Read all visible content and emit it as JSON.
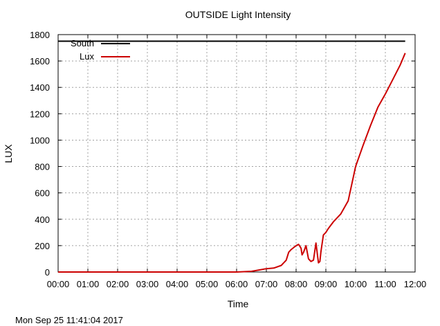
{
  "chart_data": {
    "type": "line",
    "title": "OUTSIDE Light Intensity",
    "xlabel": "Time",
    "ylabel": "LUX",
    "xlim": [
      "00:00",
      "12:00"
    ],
    "x_ticks": [
      "00:00",
      "01:00",
      "02:00",
      "03:00",
      "04:00",
      "05:00",
      "06:00",
      "07:00",
      "08:00",
      "09:00",
      "10:00",
      "11:00",
      "12:00"
    ],
    "ylim": [
      0,
      1800
    ],
    "y_ticks": [
      0,
      200,
      400,
      600,
      800,
      1000,
      1200,
      1400,
      1600,
      1800
    ],
    "grid": true,
    "legend_position": "top-left",
    "series": [
      {
        "name": "South",
        "color": "#000000",
        "x": [
          "00:00",
          "11:40"
        ],
        "values": [
          1750,
          1750
        ]
      },
      {
        "name": "Lux",
        "color": "#cc0000",
        "x": [
          "00:00",
          "06:00",
          "06:30",
          "06:45",
          "07:00",
          "07:15",
          "07:30",
          "07:40",
          "07:45",
          "07:50",
          "08:00",
          "08:05",
          "08:10",
          "08:12",
          "08:15",
          "08:20",
          "08:25",
          "08:30",
          "08:35",
          "08:40",
          "08:45",
          "08:48",
          "08:50",
          "08:55",
          "09:00",
          "09:05",
          "09:15",
          "09:30",
          "09:45",
          "10:00",
          "10:15",
          "10:30",
          "10:45",
          "11:00",
          "11:15",
          "11:30",
          "11:40"
        ],
        "values": [
          0,
          0,
          5,
          15,
          25,
          30,
          50,
          90,
          150,
          170,
          200,
          210,
          180,
          130,
          150,
          200,
          100,
          80,
          90,
          220,
          70,
          80,
          150,
          280,
          300,
          330,
          380,
          440,
          540,
          800,
          960,
          1110,
          1250,
          1350,
          1460,
          1570,
          1660
        ]
      }
    ]
  },
  "timestamp": "Mon Sep 25 11:41:04 2017"
}
